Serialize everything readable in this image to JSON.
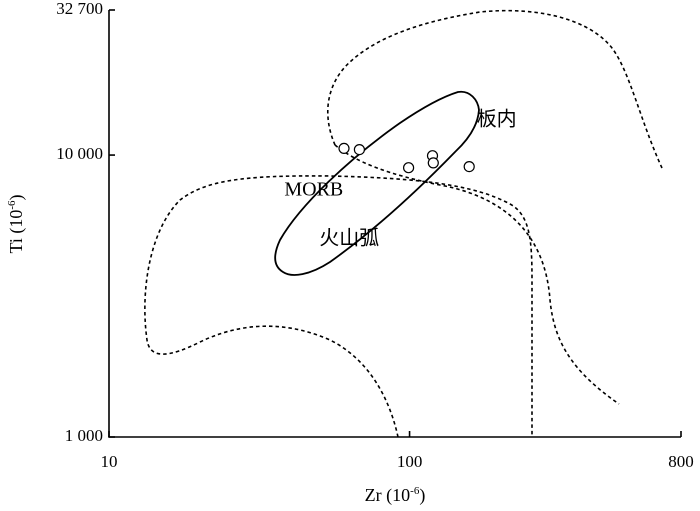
{
  "chart_data": {
    "type": "scatter",
    "title": "",
    "xlabel": "Zr (10",
    "xlabel_sup": "-6",
    "ylabel": "Ti (10",
    "ylabel_sup": "-6",
    "label_close": ")",
    "x_scale": "log",
    "y_scale": "log",
    "xlim": [
      10,
      800
    ],
    "ylim": [
      1000,
      32700
    ],
    "x_ticks": [
      {
        "value": 10,
        "label": "10"
      },
      {
        "value": 100,
        "label": "100"
      },
      {
        "value": 800,
        "label": "800"
      }
    ],
    "y_ticks": [
      {
        "value": 1000,
        "label": "1 000"
      },
      {
        "value": 10000,
        "label": "10 000"
      },
      {
        "value": 32700,
        "label": "32 700"
      }
    ],
    "grid": false,
    "fields": [
      {
        "name": "MORB",
        "label": "MORB",
        "style": "solid",
        "label_at": [
          48,
          7450
        ]
      },
      {
        "name": "板内",
        "label": "板内",
        "style": "dashed",
        "label_at": [
          195,
          13200
        ]
      },
      {
        "name": "火山弧",
        "label": "火山弧",
        "style": "dashed",
        "label_at": [
          63,
          5000
        ]
      }
    ],
    "points": [
      {
        "x": 60.5,
        "y": 10560
      },
      {
        "x": 68.1,
        "y": 10460
      },
      {
        "x": 99.3,
        "y": 9020
      },
      {
        "x": 119.2,
        "y": 9950
      },
      {
        "x": 119.9,
        "y": 9380
      },
      {
        "x": 157.9,
        "y": 9100
      }
    ]
  }
}
